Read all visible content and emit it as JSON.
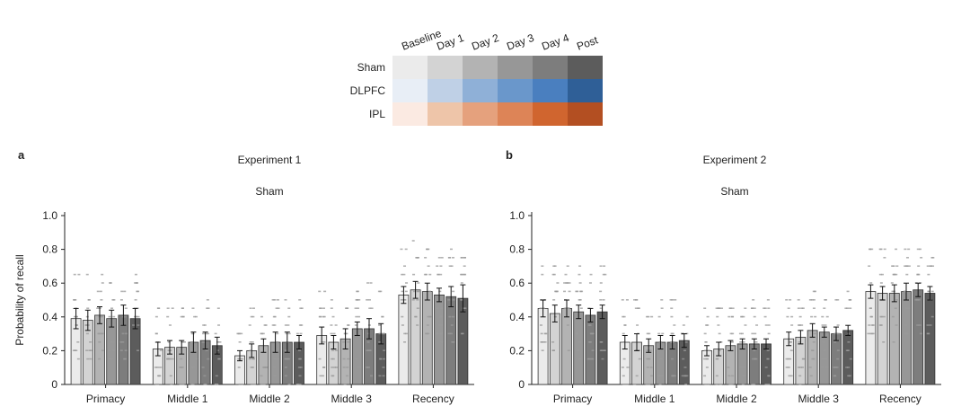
{
  "legend": {
    "columns": [
      "Baseline",
      "Day 1",
      "Day 2",
      "Day 3",
      "Day 4",
      "Post"
    ],
    "rows": [
      {
        "label": "Sham",
        "colors": [
          "#ebebeb",
          "#d3d3d3",
          "#b3b3b3",
          "#979797",
          "#7d7d7d",
          "#5c5c5c"
        ]
      },
      {
        "label": "DLPFC",
        "colors": [
          "#e8eef6",
          "#bfd0e6",
          "#8fb0d7",
          "#6a97cb",
          "#4a7fbf",
          "#2f5f97"
        ]
      },
      {
        "label": "IPL",
        "colors": [
          "#fbeae2",
          "#eec5a9",
          "#e5a17d",
          "#dd8457",
          "#d0652f",
          "#b34f22"
        ]
      }
    ]
  },
  "chart_data": [
    {
      "type": "bar",
      "panel": "a",
      "title": "Experiment 1",
      "subtitle": "Sham",
      "ylabel": "Probability of recall",
      "ylim": [
        0,
        1.0
      ],
      "yticks": [
        "0",
        "0.2",
        "0.4",
        "0.6",
        "0.8",
        "1.0"
      ],
      "categories": [
        "Primacy",
        "Middle 1",
        "Middle 2",
        "Middle 3",
        "Recency"
      ],
      "series": [
        {
          "values": [
            0.39,
            0.21,
            0.17,
            0.29,
            0.53
          ],
          "errors": [
            0.06,
            0.04,
            0.03,
            0.05,
            0.05
          ]
        },
        {
          "values": [
            0.38,
            0.22,
            0.2,
            0.25,
            0.56
          ],
          "errors": [
            0.06,
            0.04,
            0.04,
            0.04,
            0.05
          ]
        },
        {
          "values": [
            0.41,
            0.22,
            0.23,
            0.27,
            0.55
          ],
          "errors": [
            0.05,
            0.04,
            0.04,
            0.06,
            0.05
          ]
        },
        {
          "values": [
            0.39,
            0.25,
            0.25,
            0.33,
            0.53
          ],
          "errors": [
            0.05,
            0.06,
            0.06,
            0.04,
            0.04
          ]
        },
        {
          "values": [
            0.41,
            0.26,
            0.25,
            0.33,
            0.52
          ],
          "errors": [
            0.06,
            0.05,
            0.06,
            0.06,
            0.06
          ]
        },
        {
          "values": [
            0.39,
            0.23,
            0.25,
            0.3,
            0.51
          ],
          "errors": [
            0.06,
            0.05,
            0.04,
            0.06,
            0.08
          ]
        }
      ]
    },
    {
      "type": "bar",
      "panel": "b",
      "title": "Experiment 2",
      "subtitle": "Sham",
      "ylabel": "",
      "ylim": [
        0,
        1.0
      ],
      "yticks": [
        "0",
        "0.2",
        "0.4",
        "0.6",
        "0.8",
        "1.0"
      ],
      "categories": [
        "Primacy",
        "Middle 1",
        "Middle 2",
        "Middle 3",
        "Recency"
      ],
      "series": [
        {
          "values": [
            0.45,
            0.25,
            0.2,
            0.27,
            0.55
          ],
          "errors": [
            0.05,
            0.04,
            0.03,
            0.04,
            0.04
          ]
        },
        {
          "values": [
            0.42,
            0.25,
            0.21,
            0.28,
            0.54
          ],
          "errors": [
            0.05,
            0.05,
            0.04,
            0.04,
            0.04
          ]
        },
        {
          "values": [
            0.45,
            0.23,
            0.23,
            0.32,
            0.54
          ],
          "errors": [
            0.05,
            0.04,
            0.03,
            0.04,
            0.05
          ]
        },
        {
          "values": [
            0.43,
            0.25,
            0.24,
            0.31,
            0.55
          ],
          "errors": [
            0.04,
            0.04,
            0.03,
            0.03,
            0.05
          ]
        },
        {
          "values": [
            0.41,
            0.25,
            0.24,
            0.3,
            0.56
          ],
          "errors": [
            0.04,
            0.04,
            0.03,
            0.04,
            0.04
          ]
        },
        {
          "values": [
            0.43,
            0.26,
            0.24,
            0.32,
            0.54
          ],
          "errors": [
            0.04,
            0.04,
            0.03,
            0.03,
            0.04
          ]
        }
      ]
    }
  ]
}
